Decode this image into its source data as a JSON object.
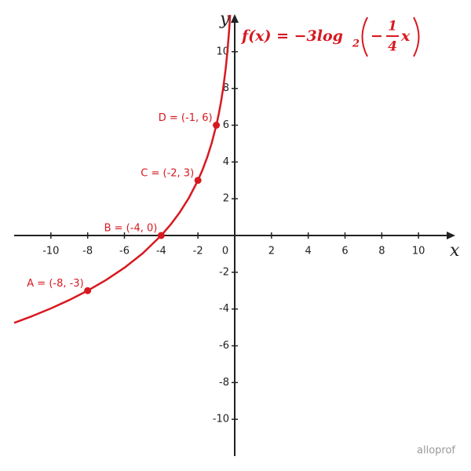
{
  "chart_data": {
    "type": "line",
    "formula": {
      "lhs": "f(x) = −3log",
      "base": "2",
      "sign": "−",
      "numerator": "1",
      "denominator": "4",
      "variable": "x"
    },
    "xlabel": "x",
    "ylabel": "y",
    "origin_label": "0",
    "xlim": [
      -12,
      12
    ],
    "ylim": [
      -12,
      12
    ],
    "xticks": [
      -10,
      -8,
      -6,
      -4,
      -2,
      2,
      4,
      6,
      8,
      10
    ],
    "yticks": [
      10,
      8,
      6,
      4,
      2,
      -2,
      -4,
      -6,
      -8,
      -10
    ],
    "series": [
      {
        "color": "#d71920",
        "x": [
          -12,
          -11,
          -10,
          -9,
          -8,
          -7,
          -6,
          -5,
          -4,
          -3.5,
          -3,
          -2.5,
          -2,
          -1.75,
          -1.5,
          -1.25,
          -1,
          -0.875,
          -0.75,
          -0.625,
          -0.5,
          -0.4,
          -0.3,
          -0.25
        ],
        "values": [
          -4.755,
          -4.378,
          -3.966,
          -3.51,
          -3,
          -2.422,
          -1.755,
          -0.966,
          0,
          0.578,
          1.245,
          2.034,
          3,
          3.578,
          4.245,
          5.034,
          6,
          6.578,
          7.245,
          8.034,
          9,
          9.966,
          11.21,
          12
        ]
      }
    ],
    "points": {
      "color": "#d71920",
      "x": [
        -8,
        -4,
        -2,
        -1
      ],
      "values": [
        -3,
        0,
        3,
        6
      ],
      "labels": [
        "A = (-8, -3)",
        "B = (-4, 0)",
        "C = (-2, 3)",
        "D = (-1, 6)"
      ]
    },
    "watermark": "alloprof"
  }
}
